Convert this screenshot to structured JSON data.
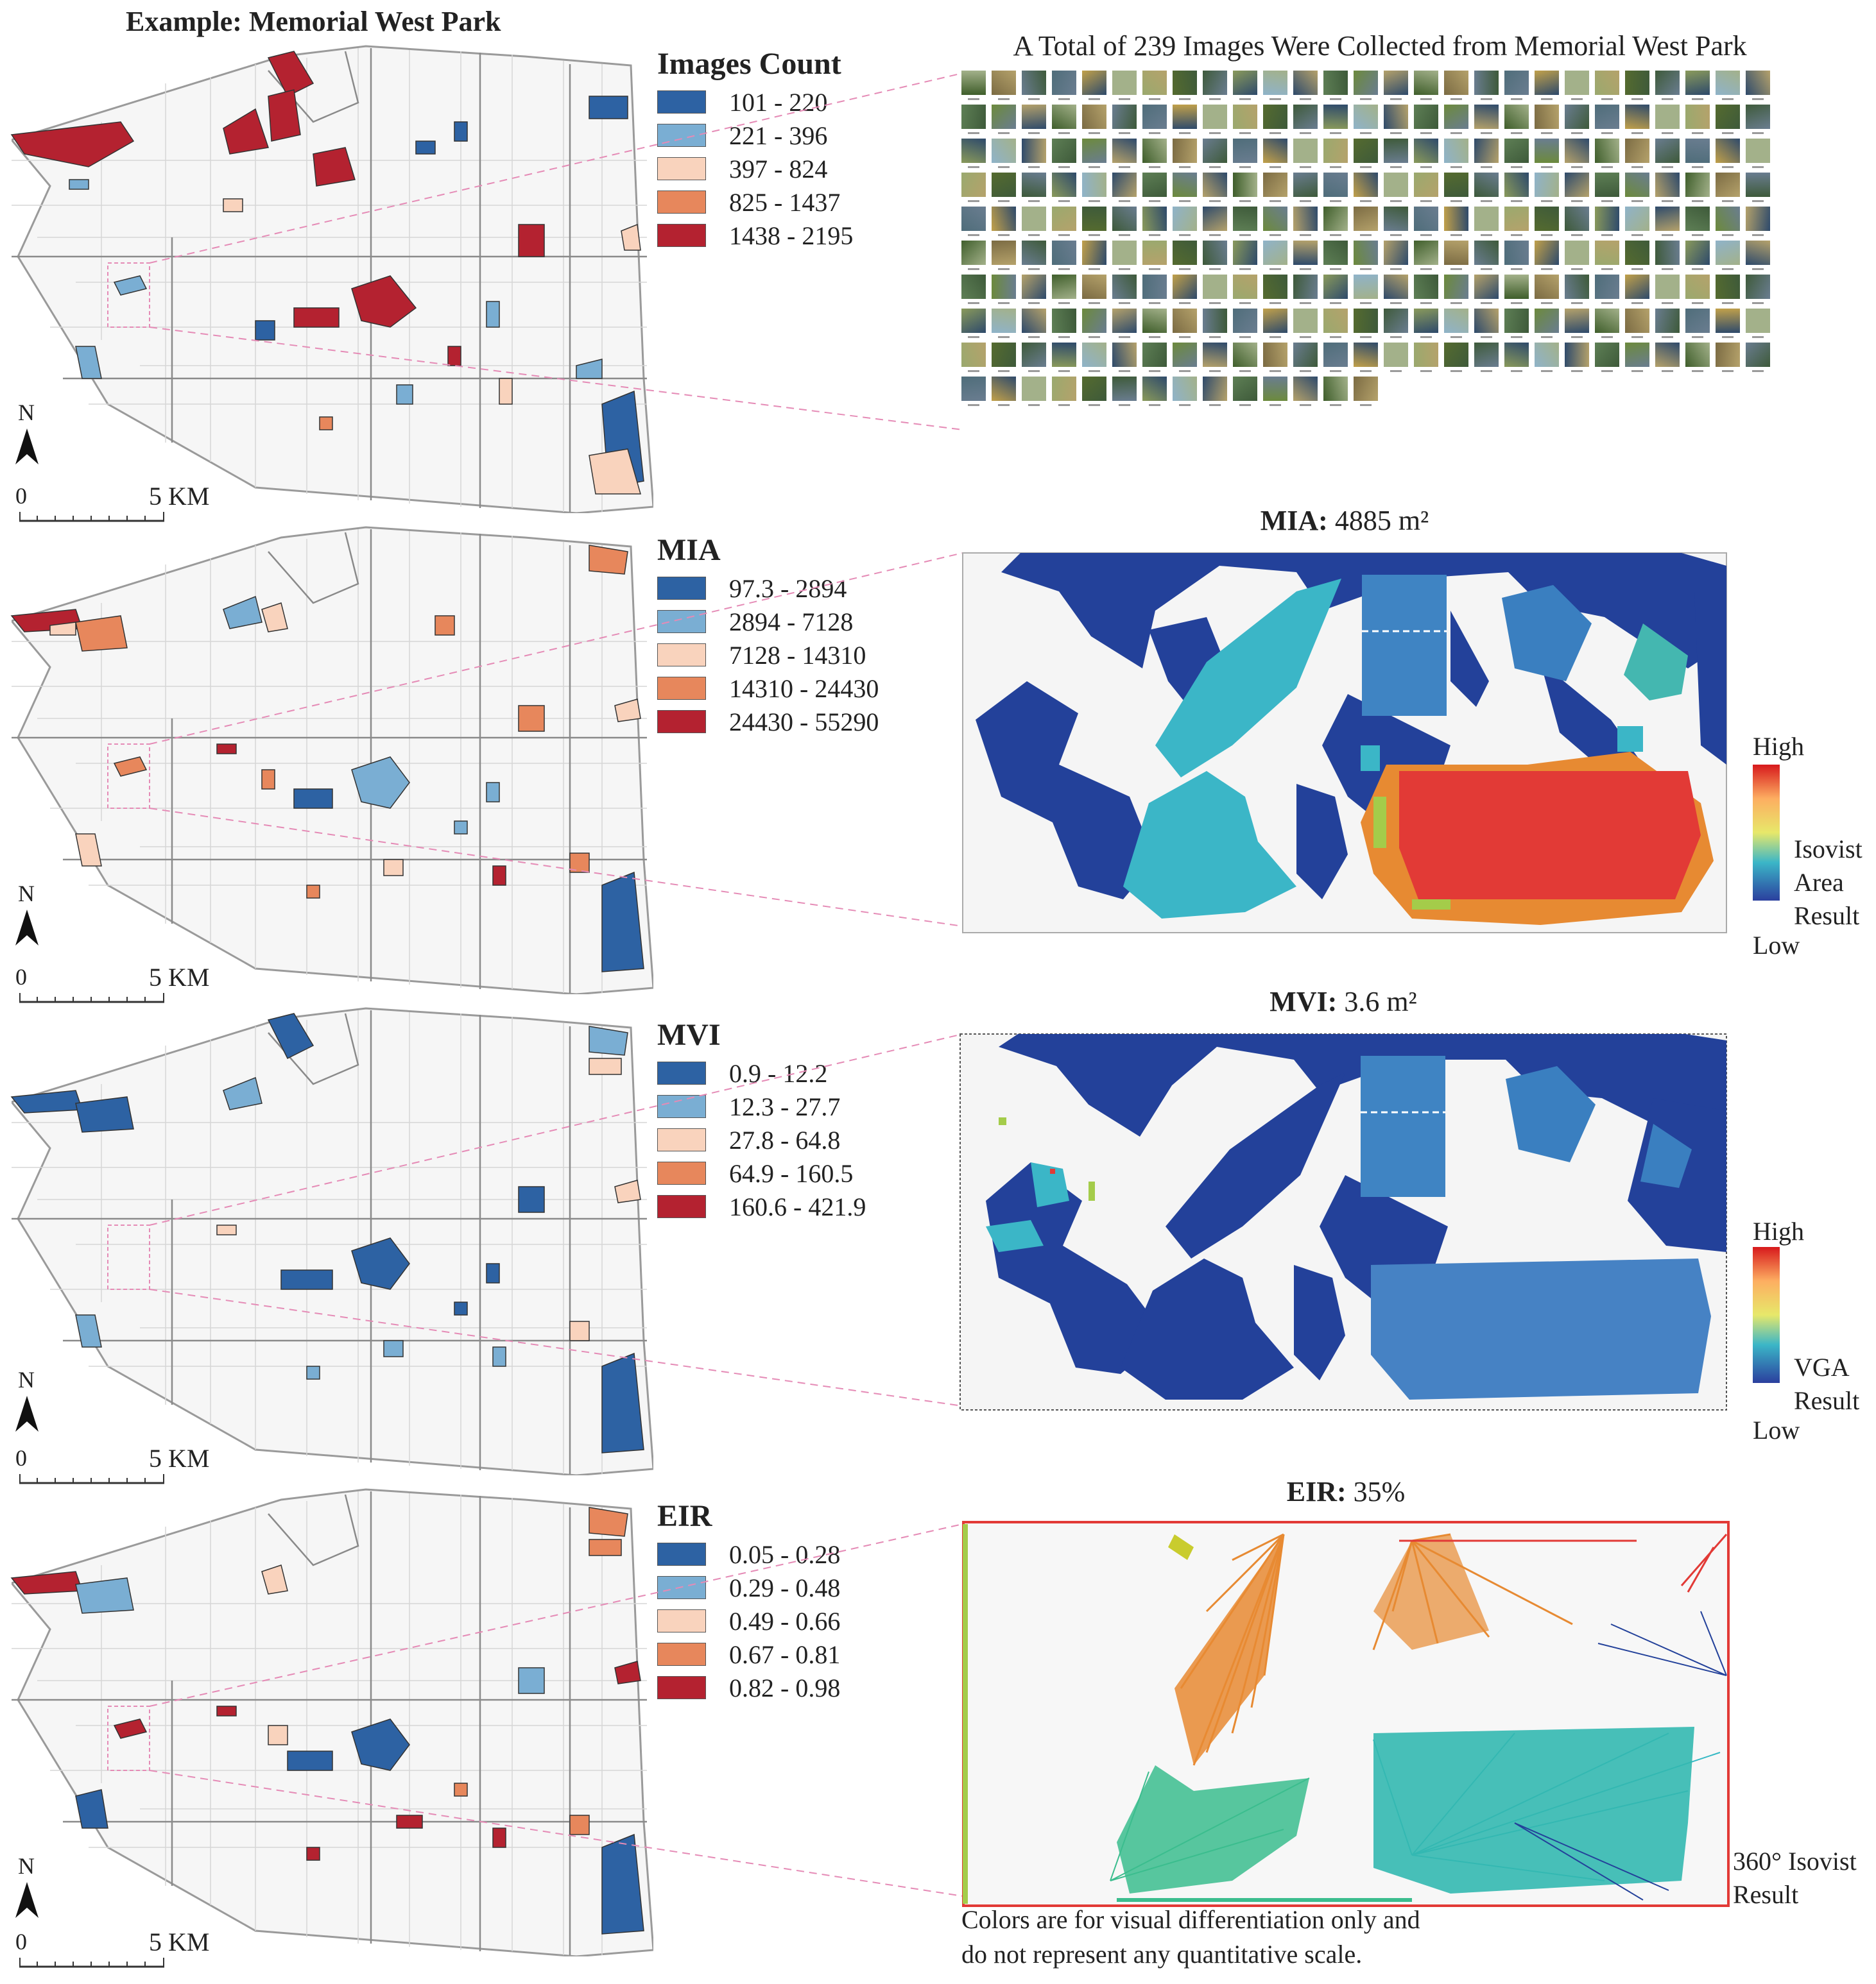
{
  "colors": {
    "class1": "#2d62a3",
    "class2": "#7aaed3",
    "class3": "#f9d3bd",
    "class4": "#e7875c",
    "class5": "#b42230",
    "callout": "#e58bb6",
    "base_fill": "#f6f6f6",
    "base_line": "#cfcfcf"
  },
  "map_title": "Example: Memorial West Park",
  "north_letter": "N",
  "scale": {
    "zero": "0",
    "label": "5 KM"
  },
  "maps": [
    {
      "legend_title": "Images Count",
      "classes": [
        "101 - 220",
        "221 - 396",
        "397 - 824",
        "825 - 1437",
        "1438 - 2195"
      ]
    },
    {
      "legend_title": "MIA",
      "classes": [
        "97.3 - 2894",
        "2894 - 7128",
        "7128 - 14310",
        "14310 - 24430",
        "24430 - 55290"
      ]
    },
    {
      "legend_title": "MVI",
      "classes": [
        "0.9 - 12.2",
        "12.3 - 27.7",
        "27.8 - 64.8",
        "64.9 - 160.5",
        "160.6 - 421.9"
      ]
    },
    {
      "legend_title": "EIR",
      "classes": [
        "0.05 - 0.28",
        "0.29 - 0.48",
        "0.49 - 0.66",
        "0.67 - 0.81",
        "0.82 - 0.98"
      ]
    }
  ],
  "images_panel": {
    "title": "A Total of 239 Images Were Collected from Memorial West Park"
  },
  "mia_panel": {
    "label": "MIA:",
    "value": "4885 m²",
    "ramp_high": "High",
    "ramp_low": "Low",
    "ramp_caption": [
      "Isovist",
      "Area",
      "Result"
    ]
  },
  "mvi_panel": {
    "label": "MVI:",
    "value": "3.6 m²",
    "ramp_high": "High",
    "ramp_low": "Low",
    "ramp_caption": [
      "VGA",
      "Result"
    ]
  },
  "eir_panel": {
    "label": "EIR:",
    "value": "35%",
    "caption": [
      "360° Isovist",
      "Result"
    ],
    "note": [
      "Colors are for visual differentiation only and",
      "do not represent any quantitative scale."
    ]
  }
}
